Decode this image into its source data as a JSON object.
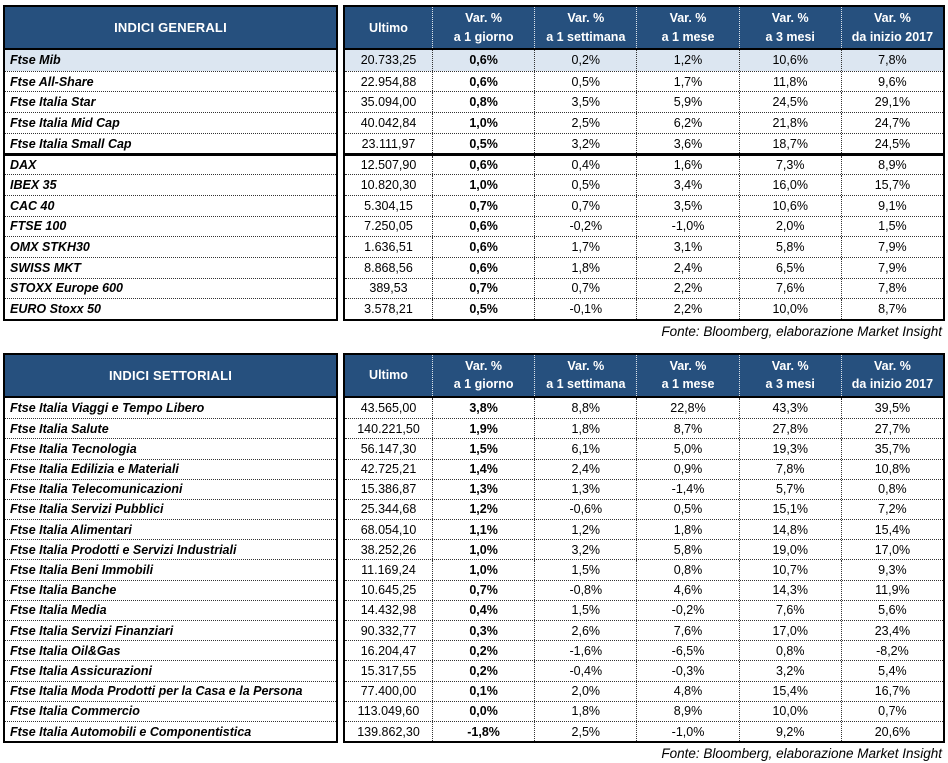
{
  "colors": {
    "header_bg": "#26507e",
    "highlight_row": "#dce6f1",
    "border": "#000000"
  },
  "tables": [
    {
      "title": "INDICI GENERALI",
      "ultimo_label": "Ultimo",
      "var_cols": [
        {
          "line1": "Var. %",
          "line2": "a 1 giorno"
        },
        {
          "line1": "Var. %",
          "line2": "a 1 settimana"
        },
        {
          "line1": "Var. %",
          "line2": "a 1 mese"
        },
        {
          "line1": "Var. %",
          "line2": "a 3 mesi"
        },
        {
          "line1": "Var. %",
          "line2": "da inizio 2017"
        }
      ],
      "rows": [
        {
          "name": "Ftse Mib",
          "ultimo": "20.733,25",
          "vars": [
            "0,6%",
            "0,2%",
            "1,2%",
            "10,6%",
            "7,8%"
          ],
          "highlight": true
        },
        {
          "name": "Ftse All-Share",
          "ultimo": "22.954,88",
          "vars": [
            "0,6%",
            "0,5%",
            "1,7%",
            "11,8%",
            "9,6%"
          ]
        },
        {
          "name": "Ftse Italia Star",
          "ultimo": "35.094,00",
          "vars": [
            "0,8%",
            "3,5%",
            "5,9%",
            "24,5%",
            "29,1%"
          ]
        },
        {
          "name": "Ftse Italia Mid Cap",
          "ultimo": "40.042,84",
          "vars": [
            "1,0%",
            "2,5%",
            "6,2%",
            "21,8%",
            "24,7%"
          ]
        },
        {
          "name": "Ftse Italia Small Cap",
          "ultimo": "23.111,97",
          "vars": [
            "0,5%",
            "3,2%",
            "3,6%",
            "18,7%",
            "24,5%"
          ]
        },
        {
          "name": "DAX",
          "ultimo": "12.507,90",
          "vars": [
            "0,6%",
            "0,4%",
            "1,6%",
            "7,3%",
            "8,9%"
          ],
          "group_start": true
        },
        {
          "name": "IBEX 35",
          "ultimo": "10.820,30",
          "vars": [
            "1,0%",
            "0,5%",
            "3,4%",
            "16,0%",
            "15,7%"
          ]
        },
        {
          "name": "CAC 40",
          "ultimo": "5.304,15",
          "vars": [
            "0,7%",
            "0,7%",
            "3,5%",
            "10,6%",
            "9,1%"
          ]
        },
        {
          "name": "FTSE 100",
          "ultimo": "7.250,05",
          "vars": [
            "0,6%",
            "-0,2%",
            "-1,0%",
            "2,0%",
            "1,5%"
          ]
        },
        {
          "name": "OMX STKH30",
          "ultimo": "1.636,51",
          "vars": [
            "0,6%",
            "1,7%",
            "3,1%",
            "5,8%",
            "7,9%"
          ]
        },
        {
          "name": "SWISS MKT",
          "ultimo": "8.868,56",
          "vars": [
            "0,6%",
            "1,8%",
            "2,4%",
            "6,5%",
            "7,9%"
          ]
        },
        {
          "name": "STOXX Europe 600",
          "ultimo": "389,53",
          "vars": [
            "0,7%",
            "0,7%",
            "2,2%",
            "7,6%",
            "7,8%"
          ]
        },
        {
          "name": "EURO Stoxx 50",
          "ultimo": "3.578,21",
          "vars": [
            "0,5%",
            "-0,1%",
            "2,2%",
            "10,0%",
            "8,7%"
          ]
        }
      ],
      "source": "Fonte: Bloomberg, elaborazione Market Insight"
    },
    {
      "title": "INDICI SETTORIALI",
      "ultimo_label": "Ultimo",
      "var_cols": [
        {
          "line1": "Var. %",
          "line2": "a 1 giorno"
        },
        {
          "line1": "Var. %",
          "line2": "a 1 settimana"
        },
        {
          "line1": "Var. %",
          "line2": "a 1 mese"
        },
        {
          "line1": "Var. %",
          "line2": "a 3 mesi"
        },
        {
          "line1": "Var. %",
          "line2": "da inizio 2017"
        }
      ],
      "rows": [
        {
          "name": "Ftse Italia Viaggi e Tempo Libero",
          "ultimo": "43.565,00",
          "vars": [
            "3,8%",
            "8,8%",
            "22,8%",
            "43,3%",
            "39,5%"
          ]
        },
        {
          "name": "Ftse Italia Salute",
          "ultimo": "140.221,50",
          "vars": [
            "1,9%",
            "1,8%",
            "8,7%",
            "27,8%",
            "27,7%"
          ]
        },
        {
          "name": "Ftse Italia Tecnologia",
          "ultimo": "56.147,30",
          "vars": [
            "1,5%",
            "6,1%",
            "5,0%",
            "19,3%",
            "35,7%"
          ]
        },
        {
          "name": "Ftse Italia Edilizia e Materiali",
          "ultimo": "42.725,21",
          "vars": [
            "1,4%",
            "2,4%",
            "0,9%",
            "7,8%",
            "10,8%"
          ]
        },
        {
          "name": "Ftse Italia Telecomunicazioni",
          "ultimo": "15.386,87",
          "vars": [
            "1,3%",
            "1,3%",
            "-1,4%",
            "5,7%",
            "0,8%"
          ]
        },
        {
          "name": "Ftse Italia Servizi Pubblici",
          "ultimo": "25.344,68",
          "vars": [
            "1,2%",
            "-0,6%",
            "0,5%",
            "15,1%",
            "7,2%"
          ]
        },
        {
          "name": "Ftse Italia Alimentari",
          "ultimo": "68.054,10",
          "vars": [
            "1,1%",
            "1,2%",
            "1,8%",
            "14,8%",
            "15,4%"
          ]
        },
        {
          "name": "Ftse Italia Prodotti e Servizi Industriali",
          "ultimo": "38.252,26",
          "vars": [
            "1,0%",
            "3,2%",
            "5,8%",
            "19,0%",
            "17,0%"
          ]
        },
        {
          "name": "Ftse Italia Beni Immobili",
          "ultimo": "11.169,24",
          "vars": [
            "1,0%",
            "1,5%",
            "0,8%",
            "10,7%",
            "9,3%"
          ]
        },
        {
          "name": "Ftse Italia Banche",
          "ultimo": "10.645,25",
          "vars": [
            "0,7%",
            "-0,8%",
            "4,6%",
            "14,3%",
            "11,9%"
          ]
        },
        {
          "name": "Ftse Italia Media",
          "ultimo": "14.432,98",
          "vars": [
            "0,4%",
            "1,5%",
            "-0,2%",
            "7,6%",
            "5,6%"
          ]
        },
        {
          "name": "Ftse Italia Servizi Finanziari",
          "ultimo": "90.332,77",
          "vars": [
            "0,3%",
            "2,6%",
            "7,6%",
            "17,0%",
            "23,4%"
          ]
        },
        {
          "name": "Ftse Italia Oil&Gas",
          "ultimo": "16.204,47",
          "vars": [
            "0,2%",
            "-1,6%",
            "-6,5%",
            "0,8%",
            "-8,2%"
          ]
        },
        {
          "name": "Ftse Italia Assicurazioni",
          "ultimo": "15.317,55",
          "vars": [
            "0,2%",
            "-0,4%",
            "-0,3%",
            "3,2%",
            "5,4%"
          ]
        },
        {
          "name": "Ftse Italia Moda Prodotti per la Casa e la Persona",
          "ultimo": "77.400,00",
          "vars": [
            "0,1%",
            "2,0%",
            "4,8%",
            "15,4%",
            "16,7%"
          ]
        },
        {
          "name": "Ftse Italia Commercio",
          "ultimo": "113.049,60",
          "vars": [
            "0,0%",
            "1,8%",
            "8,9%",
            "10,0%",
            "0,7%"
          ]
        },
        {
          "name": "Ftse Italia Automobili e Componentistica",
          "ultimo": "139.862,30",
          "vars": [
            "-1,8%",
            "2,5%",
            "-1,0%",
            "9,2%",
            "20,6%"
          ]
        }
      ],
      "source": "Fonte: Bloomberg, elaborazione Market Insight"
    }
  ]
}
